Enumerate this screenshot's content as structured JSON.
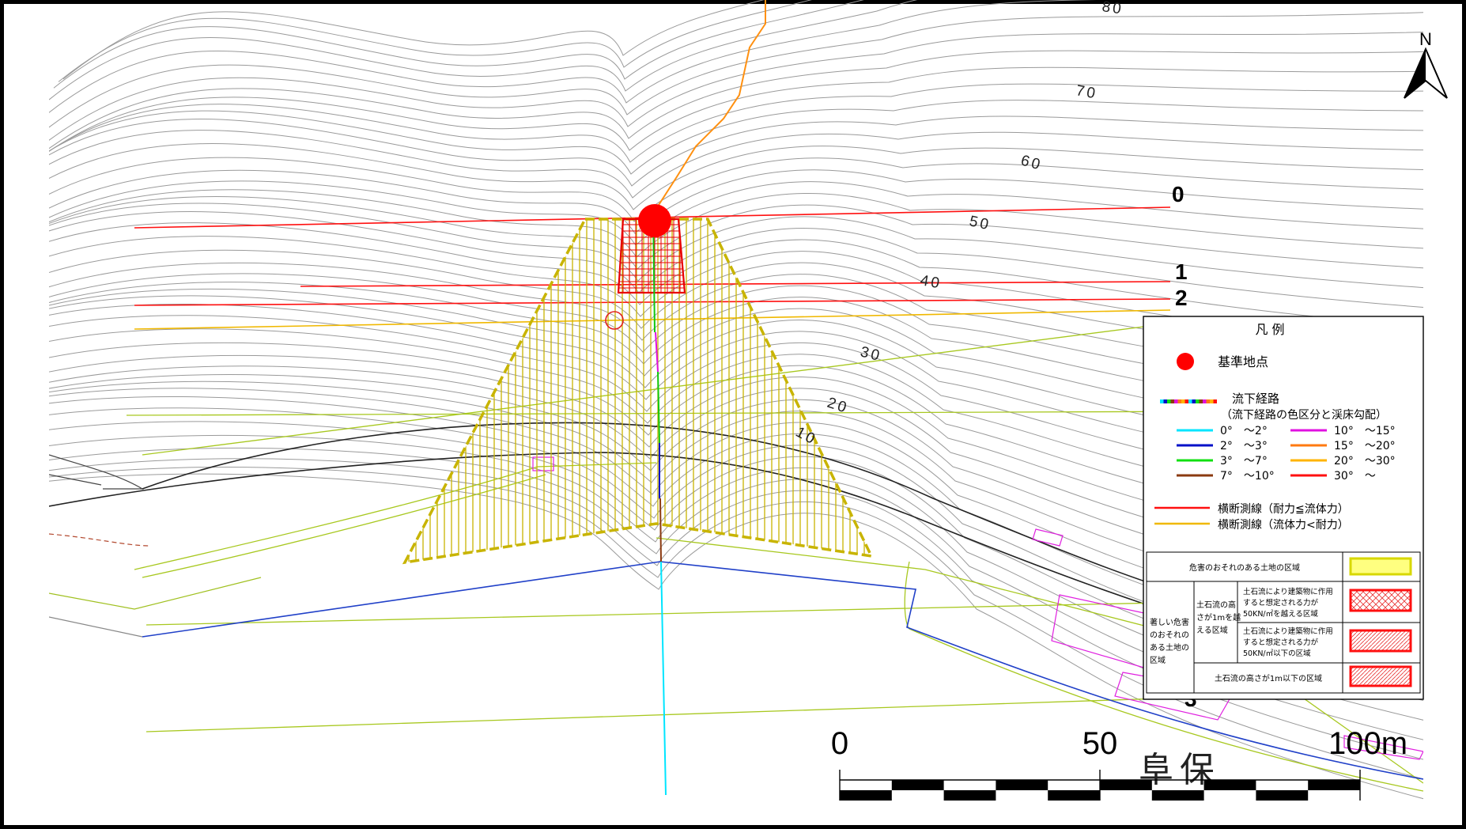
{
  "map": {
    "place_name": "阜保",
    "north_label": "N",
    "contour_labels": [
      "80",
      "70",
      "60",
      "50",
      "40",
      "30",
      "20",
      "10"
    ],
    "section_labels": [
      "0",
      "1",
      "2",
      "3"
    ],
    "scale_bar": {
      "labels": [
        "0",
        "50",
        "100m"
      ]
    }
  },
  "legend": {
    "title": "凡 例",
    "base_point": "基準地点",
    "flow_path": "流下経路",
    "flow_path_note": "（流下経路の色区分と渓床勾配）",
    "gradients": [
      {
        "label": "0°　～2°",
        "color": "#00e5ff"
      },
      {
        "label": "2°　～3°",
        "color": "#0010c8"
      },
      {
        "label": "3°　～7°",
        "color": "#10e010"
      },
      {
        "label": "7°　～10°",
        "color": "#8b3a10"
      },
      {
        "label": "10°　～15°",
        "color": "#e010e0"
      },
      {
        "label": "15°　～20°",
        "color": "#ff7a10"
      },
      {
        "label": "20°　～30°",
        "color": "#ffb400"
      },
      {
        "label": "30°　～",
        "color": "#ff1010"
      }
    ],
    "sections": [
      {
        "label": "横断測線（耐力≦流体力）",
        "color": "#ff1010"
      },
      {
        "label": "横断測線（流体力<耐力）",
        "color": "#f0b800"
      }
    ],
    "zones": {
      "hazard_zone": "危害のおそれのある土地の区域",
      "severe_zone": "著しい危害のおそれのある土地の区域",
      "height_over_1m": "土石流の高さが1mを越える区域",
      "force_over": "土石流により建築物に作用すると想定される力が50KN/㎡を越える区域",
      "force_under": "土石流により建築物に作用すると想定される力が50KN/㎡以下の区域",
      "height_under_1m": "土石流の高さが1m以下の区域"
    }
  }
}
